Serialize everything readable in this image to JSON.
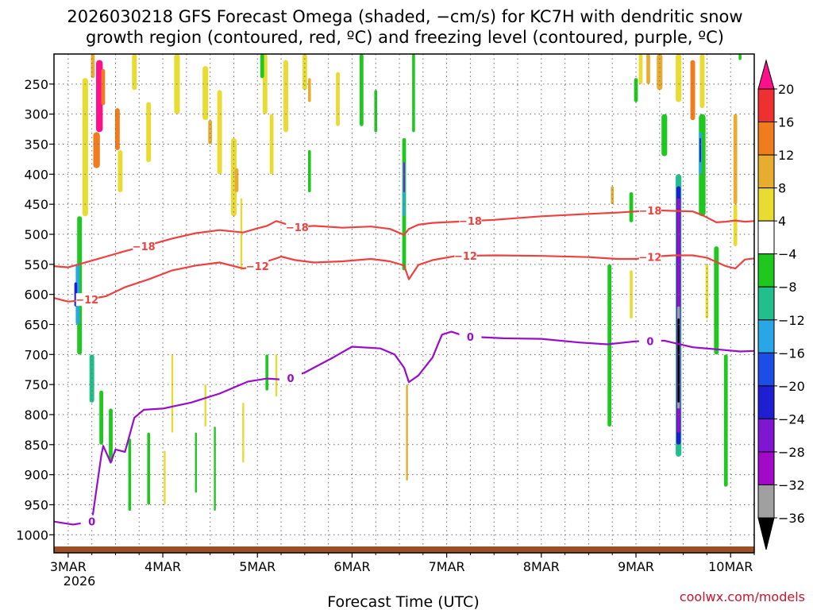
{
  "chart_data": {
    "type": "heatmap",
    "title_line1": "2026030218 GFS Forecast Omega (shaded, −cm/s) for KC7H with dendritic snow",
    "title_line2": "growth region (contoured, red, ºC) and freezing level (contoured, purple, ºC)",
    "xlabel": "Forecast Time (UTC)",
    "credit": "coolwx.com/models",
    "x_range_days": [
      2.85,
      10.25
    ],
    "y_range_hpa": [
      1030,
      200
    ],
    "y_ticks": [
      "250",
      "300",
      "350",
      "400",
      "450",
      "500",
      "550",
      "600",
      "650",
      "700",
      "750",
      "800",
      "850",
      "900",
      "950",
      "1000"
    ],
    "y_tick_values": [
      250,
      300,
      350,
      400,
      450,
      500,
      550,
      600,
      650,
      700,
      750,
      800,
      850,
      900,
      950,
      1000
    ],
    "x_ticks": [
      {
        "label": "3MAR",
        "day": 3
      },
      {
        "label": "4MAR",
        "day": 4
      },
      {
        "label": "5MAR",
        "day": 5
      },
      {
        "label": "6MAR",
        "day": 6
      },
      {
        "label": "7MAR",
        "day": 7
      },
      {
        "label": "8MAR",
        "day": 8
      },
      {
        "label": "9MAR",
        "day": 9
      },
      {
        "label": "10MAR",
        "day": 10
      }
    ],
    "year_label": "2026",
    "colorbar": {
      "labels": [
        "20",
        "16",
        "12",
        "8",
        "4",
        "−4",
        "−8",
        "−12",
        "−16",
        "−20",
        "−24",
        "−28",
        "−32",
        "−36"
      ],
      "colors": [
        "#ff0f8c",
        "#ef3030",
        "#ef7d1e",
        "#e8ad30",
        "#e8dc33",
        "#ffffff",
        "#1ec81e",
        "#22be8c",
        "#28a6e6",
        "#1a4ee6",
        "#1e1ed2",
        "#7e16d2",
        "#a00ac8",
        "#a0a0a0",
        "#000000"
      ]
    },
    "contours": [
      {
        "name": "dgz-bottom",
        "label": "−12",
        "color": "#ef4040",
        "x": [
          2.85,
          3.0,
          3.15,
          3.4,
          3.6,
          3.85,
          4.1,
          4.35,
          4.6,
          4.85,
          5.0,
          5.1,
          5.2,
          5.25,
          5.4,
          5.6,
          5.9,
          6.2,
          6.4,
          6.55,
          6.6,
          6.7,
          6.85,
          7.1,
          7.5,
          8.0,
          8.5,
          8.8,
          9.0,
          9.2,
          9.4,
          9.6,
          9.75,
          9.85,
          9.95,
          10.05,
          10.15,
          10.25
        ],
        "y": [
          606,
          612,
          610,
          603,
          588,
          575,
          560,
          552,
          547,
          557,
          553,
          545,
          540,
          537,
          543,
          547,
          545,
          541,
          545,
          552,
          575,
          551,
          543,
          536,
          535,
          536,
          538,
          541,
          541,
          537,
          535,
          535,
          539,
          546,
          553,
          557,
          542,
          540
        ]
      },
      {
        "name": "dgz-top",
        "label": "−18",
        "color": "#ef4040",
        "x": [
          2.85,
          3.0,
          3.2,
          3.4,
          3.6,
          3.85,
          4.1,
          4.35,
          4.6,
          4.85,
          5.0,
          5.1,
          5.2,
          5.3,
          5.4,
          5.6,
          5.9,
          6.2,
          6.4,
          6.55,
          6.6,
          6.7,
          6.85,
          7.1,
          7.5,
          8.0,
          8.5,
          8.8,
          9.0,
          9.2,
          9.4,
          9.6,
          9.7,
          9.75,
          9.85,
          9.95,
          10.05,
          10.15,
          10.25
        ],
        "y": [
          553,
          555,
          546,
          537,
          528,
          518,
          507,
          498,
          493,
          497,
          490,
          486,
          478,
          483,
          488,
          486,
          489,
          487,
          491,
          501,
          491,
          484,
          481,
          479,
          476,
          470,
          466,
          464,
          462,
          460,
          461,
          462,
          468,
          472,
          480,
          479,
          477,
          479,
          478
        ]
      },
      {
        "name": "freezing-level",
        "label": "0",
        "color": "#9a0ccc",
        "x": [
          2.85,
          3.05,
          3.25,
          3.35,
          3.37,
          3.45,
          3.5,
          3.6,
          3.7,
          3.8,
          4.0,
          4.3,
          4.6,
          4.9,
          5.1,
          5.3,
          5.5,
          5.8,
          6.0,
          6.3,
          6.45,
          6.55,
          6.6,
          6.7,
          6.85,
          6.95,
          7.05,
          7.2,
          7.6,
          8.0,
          8.4,
          8.7,
          9.0,
          9.3,
          9.6,
          9.9,
          10.1,
          10.25
        ],
        "y": [
          978,
          983,
          978,
          868,
          852,
          880,
          858,
          862,
          805,
          792,
          790,
          780,
          765,
          745,
          740,
          742,
          730,
          705,
          687,
          690,
          700,
          722,
          746,
          735,
          705,
          667,
          662,
          670,
          673,
          674,
          680,
          683,
          678,
          677,
          688,
          692,
          695,
          694
        ]
      }
    ],
    "shaded_cells": [
      {
        "x": 3.33,
        "p1": 210,
        "p2": 330,
        "v": 21,
        "w": 0.07
      },
      {
        "x": 3.3,
        "p1": 330,
        "p2": 390,
        "v": 13,
        "w": 0.07
      },
      {
        "x": 3.37,
        "p1": 225,
        "p2": 285,
        "v": 13,
        "w": 0.04
      },
      {
        "x": 3.26,
        "p1": 185,
        "p2": 240,
        "v": 9,
        "w": 0.04
      },
      {
        "x": 3.18,
        "p1": 240,
        "p2": 470,
        "v": 5,
        "w": 0.06
      },
      {
        "x": 3.52,
        "p1": 290,
        "p2": 360,
        "v": 13,
        "w": 0.05
      },
      {
        "x": 3.55,
        "p1": 360,
        "p2": 430,
        "v": 5,
        "w": 0.05
      },
      {
        "x": 3.7,
        "p1": 190,
        "p2": 260,
        "v": 5,
        "w": 0.05
      },
      {
        "x": 3.85,
        "p1": 280,
        "p2": 380,
        "v": 5,
        "w": 0.05
      },
      {
        "x": 4.15,
        "p1": 190,
        "p2": 300,
        "v": 5,
        "w": 0.06
      },
      {
        "x": 4.45,
        "p1": 220,
        "p2": 310,
        "v": 5,
        "w": 0.06
      },
      {
        "x": 4.5,
        "p1": 310,
        "p2": 350,
        "v": 9,
        "w": 0.04
      },
      {
        "x": 4.6,
        "p1": 260,
        "p2": 400,
        "v": 5,
        "w": 0.05
      },
      {
        "x": 4.75,
        "p1": 340,
        "p2": 470,
        "v": 5,
        "w": 0.06
      },
      {
        "x": 4.78,
        "p1": 390,
        "p2": 430,
        "v": 9,
        "w": 0.04
      },
      {
        "x": 5.08,
        "p1": 190,
        "p2": 300,
        "v": 5,
        "w": 0.05
      },
      {
        "x": 5.15,
        "p1": 300,
        "p2": 400,
        "v": 5,
        "w": 0.04
      },
      {
        "x": 5.3,
        "p1": 210,
        "p2": 330,
        "v": 5,
        "w": 0.05
      },
      {
        "x": 5.5,
        "p1": 190,
        "p2": 260,
        "v": 5,
        "w": 0.05
      },
      {
        "x": 5.55,
        "p1": 240,
        "p2": 280,
        "v": 9,
        "w": 0.03
      },
      {
        "x": 5.85,
        "p1": 230,
        "p2": 320,
        "v": 5,
        "w": 0.04
      },
      {
        "x": 5.05,
        "p1": 190,
        "p2": 240,
        "v": -6,
        "w": 0.04
      },
      {
        "x": 5.55,
        "p1": 360,
        "p2": 430,
        "v": -6,
        "w": 0.03
      },
      {
        "x": 6.1,
        "p1": 200,
        "p2": 320,
        "v": -6,
        "w": 0.04
      },
      {
        "x": 6.25,
        "p1": 260,
        "p2": 330,
        "v": -6,
        "w": 0.03
      },
      {
        "x": 6.55,
        "p1": 340,
        "p2": 560,
        "v": -6,
        "w": 0.04
      },
      {
        "x": 6.55,
        "p1": 380,
        "p2": 470,
        "v": -14,
        "w": 0.025
      },
      {
        "x": 6.55,
        "p1": 380,
        "p2": 430,
        "v": -27,
        "w": 0.015
      },
      {
        "x": 6.58,
        "p1": 750,
        "p2": 910,
        "v": 9,
        "w": 0.02
      },
      {
        "x": 6.65,
        "p1": 190,
        "p2": 330,
        "v": -6,
        "w": 0.03
      },
      {
        "x": 3.12,
        "p1": 470,
        "p2": 700,
        "v": -6,
        "w": 0.05
      },
      {
        "x": 3.1,
        "p1": 550,
        "p2": 650,
        "v": -14,
        "w": 0.04
      },
      {
        "x": 3.08,
        "p1": 580,
        "p2": 620,
        "v": -22,
        "w": 0.03
      },
      {
        "x": 3.25,
        "p1": 700,
        "p2": 780,
        "v": -10,
        "w": 0.05
      },
      {
        "x": 3.35,
        "p1": 760,
        "p2": 850,
        "v": -6,
        "w": 0.04
      },
      {
        "x": 3.45,
        "p1": 790,
        "p2": 880,
        "v": -6,
        "w": 0.04
      },
      {
        "x": 3.65,
        "p1": 840,
        "p2": 960,
        "v": -6,
        "w": 0.03
      },
      {
        "x": 3.85,
        "p1": 830,
        "p2": 950,
        "v": -6,
        "w": 0.03
      },
      {
        "x": 4.02,
        "p1": 860,
        "p2": 950,
        "v": 5,
        "w": 0.02
      },
      {
        "x": 4.1,
        "p1": 700,
        "p2": 830,
        "v": 5,
        "w": 0.02
      },
      {
        "x": 4.35,
        "p1": 830,
        "p2": 930,
        "v": -6,
        "w": 0.02
      },
      {
        "x": 4.55,
        "p1": 820,
        "p2": 960,
        "v": -6,
        "w": 0.02
      },
      {
        "x": 4.45,
        "p1": 750,
        "p2": 820,
        "v": 5,
        "w": 0.02
      },
      {
        "x": 4.85,
        "p1": 780,
        "p2": 880,
        "v": 5,
        "w": 0.02
      },
      {
        "x": 5.1,
        "p1": 700,
        "p2": 760,
        "v": -6,
        "w": 0.03
      },
      {
        "x": 5.2,
        "p1": 700,
        "p2": 770,
        "v": 5,
        "w": 0.02
      },
      {
        "x": 4.83,
        "p1": 440,
        "p2": 560,
        "v": 5,
        "w": 0.02
      },
      {
        "x": 8.72,
        "p1": 550,
        "p2": 820,
        "v": -6,
        "w": 0.04
      },
      {
        "x": 8.75,
        "p1": 420,
        "p2": 450,
        "v": 9,
        "w": 0.03
      },
      {
        "x": 8.95,
        "p1": 430,
        "p2": 480,
        "v": -6,
        "w": 0.04
      },
      {
        "x": 9.05,
        "p1": 190,
        "p2": 250,
        "v": 5,
        "w": 0.04
      },
      {
        "x": 9.13,
        "p1": 190,
        "p2": 250,
        "v": 9,
        "w": 0.04
      },
      {
        "x": 9.0,
        "p1": 240,
        "p2": 280,
        "v": -6,
        "w": 0.04
      },
      {
        "x": 9.25,
        "p1": 190,
        "p2": 260,
        "v": 9,
        "w": 0.06
      },
      {
        "x": 9.45,
        "p1": 200,
        "p2": 280,
        "v": 5,
        "w": 0.06
      },
      {
        "x": 9.6,
        "p1": 230,
        "p2": 290,
        "v": 21,
        "w": 0.03
      },
      {
        "x": 9.6,
        "p1": 210,
        "p2": 310,
        "v": 13,
        "w": 0.05
      },
      {
        "x": 9.7,
        "p1": 200,
        "p2": 290,
        "v": 5,
        "w": 0.05
      },
      {
        "x": 9.3,
        "p1": 300,
        "p2": 370,
        "v": -6,
        "w": 0.06
      },
      {
        "x": 9.7,
        "p1": 300,
        "p2": 470,
        "v": -6,
        "w": 0.07
      },
      {
        "x": 9.68,
        "p1": 330,
        "p2": 400,
        "v": -14,
        "w": 0.03
      },
      {
        "x": 9.68,
        "p1": 340,
        "p2": 380,
        "v": -22,
        "w": 0.015
      },
      {
        "x": 9.45,
        "p1": 400,
        "p2": 870,
        "v": -10,
        "w": 0.06
      },
      {
        "x": 9.45,
        "p1": 420,
        "p2": 850,
        "v": -22,
        "w": 0.045
      },
      {
        "x": 9.45,
        "p1": 440,
        "p2": 830,
        "v": -30,
        "w": 0.035
      },
      {
        "x": 9.45,
        "p1": 620,
        "p2": 790,
        "v": -34,
        "w": 0.03
      },
      {
        "x": 9.45,
        "p1": 640,
        "p2": 780,
        "v": -40,
        "w": 0.022
      },
      {
        "x": 9.95,
        "p1": 700,
        "p2": 920,
        "v": -6,
        "w": 0.04
      },
      {
        "x": 9.85,
        "p1": 520,
        "p2": 700,
        "v": -6,
        "w": 0.05
      },
      {
        "x": 10.05,
        "p1": 300,
        "p2": 450,
        "v": 9,
        "w": 0.04
      },
      {
        "x": 10.05,
        "p1": 450,
        "p2": 520,
        "v": 5,
        "w": 0.04
      },
      {
        "x": 8.95,
        "p1": 560,
        "p2": 640,
        "v": 5,
        "w": 0.03
      },
      {
        "x": 9.75,
        "p1": 550,
        "p2": 640,
        "v": 5,
        "w": 0.03
      },
      {
        "x": 10.1,
        "p1": 190,
        "p2": 210,
        "v": -6,
        "w": 0.03
      }
    ]
  }
}
